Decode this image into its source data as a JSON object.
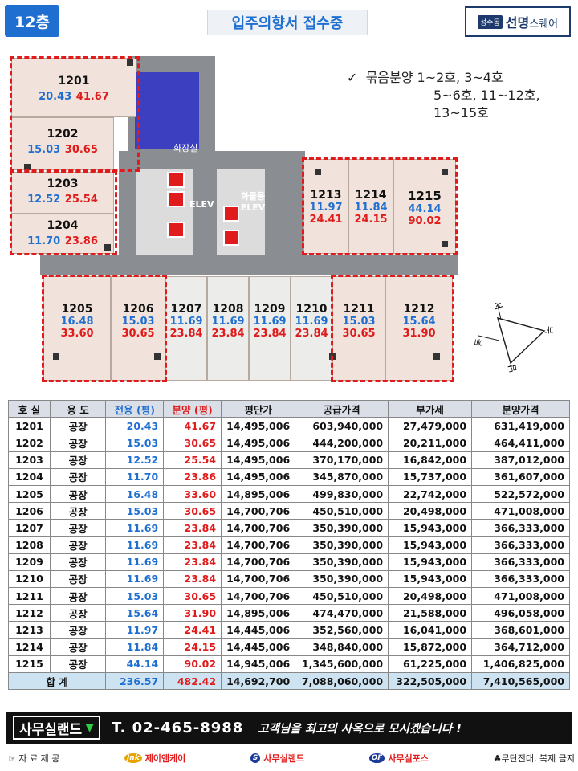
{
  "header": {
    "floor": "12층",
    "title": "입주의향서 접수중",
    "brand_badge": "성수동",
    "brand_name": "선명",
    "brand_suffix": "스퀘어"
  },
  "note": {
    "check": "✓",
    "line1": "묶음분양 1~2호, 3~4호",
    "line2": "5~6호, 11~12호,",
    "line3": "13~15호"
  },
  "floorplan": {
    "restroom_label": "화장실",
    "elev_label": "ELEV",
    "freight_elev_label": "화물용 ELEV",
    "units": [
      {
        "no": "1201",
        "exc": "20.43",
        "sale": "41.67"
      },
      {
        "no": "1202",
        "exc": "15.03",
        "sale": "30.65"
      },
      {
        "no": "1203",
        "exc": "12.52",
        "sale": "25.54"
      },
      {
        "no": "1204",
        "exc": "11.70",
        "sale": "23.86"
      },
      {
        "no": "1205",
        "exc": "16.48",
        "sale": "33.60"
      },
      {
        "no": "1206",
        "exc": "15.03",
        "sale": "30.65"
      },
      {
        "no": "1207",
        "exc": "11.69",
        "sale": "23.84"
      },
      {
        "no": "1208",
        "exc": "11.69",
        "sale": "23.84"
      },
      {
        "no": "1209",
        "exc": "11.69",
        "sale": "23.84"
      },
      {
        "no": "1210",
        "exc": "11.69",
        "sale": "23.84"
      },
      {
        "no": "1211",
        "exc": "15.03",
        "sale": "30.65"
      },
      {
        "no": "1212",
        "exc": "15.64",
        "sale": "31.90"
      },
      {
        "no": "1213",
        "exc": "11.97",
        "sale": "24.41"
      },
      {
        "no": "1214",
        "exc": "11.84",
        "sale": "24.15"
      },
      {
        "no": "1215",
        "exc": "44.14",
        "sale": "90.02"
      }
    ],
    "compass": {
      "n": "북",
      "s": "남",
      "e": "동",
      "w": "서"
    }
  },
  "table": {
    "headers": [
      "호 실",
      "용 도",
      "전용 (평)",
      "분양 (평)",
      "평단가",
      "공급가격",
      "부가세",
      "분양가격"
    ],
    "rows": [
      [
        "1201",
        "공장",
        "20.43",
        "41.67",
        "14,495,006",
        "603,940,000",
        "27,479,000",
        "631,419,000"
      ],
      [
        "1202",
        "공장",
        "15.03",
        "30.65",
        "14,495,006",
        "444,200,000",
        "20,211,000",
        "464,411,000"
      ],
      [
        "1203",
        "공장",
        "12.52",
        "25.54",
        "14,495,006",
        "370,170,000",
        "16,842,000",
        "387,012,000"
      ],
      [
        "1204",
        "공장",
        "11.70",
        "23.86",
        "14,495,006",
        "345,870,000",
        "15,737,000",
        "361,607,000"
      ],
      [
        "1205",
        "공장",
        "16.48",
        "33.60",
        "14,895,006",
        "499,830,000",
        "22,742,000",
        "522,572,000"
      ],
      [
        "1206",
        "공장",
        "15.03",
        "30.65",
        "14,700,706",
        "450,510,000",
        "20,498,000",
        "471,008,000"
      ],
      [
        "1207",
        "공장",
        "11.69",
        "23.84",
        "14,700,706",
        "350,390,000",
        "15,943,000",
        "366,333,000"
      ],
      [
        "1208",
        "공장",
        "11.69",
        "23.84",
        "14,700,706",
        "350,390,000",
        "15,943,000",
        "366,333,000"
      ],
      [
        "1209",
        "공장",
        "11.69",
        "23.84",
        "14,700,706",
        "350,390,000",
        "15,943,000",
        "366,333,000"
      ],
      [
        "1210",
        "공장",
        "11.69",
        "23.84",
        "14,700,706",
        "350,390,000",
        "15,943,000",
        "366,333,000"
      ],
      [
        "1211",
        "공장",
        "15.03",
        "30.65",
        "14,700,706",
        "450,510,000",
        "20,498,000",
        "471,008,000"
      ],
      [
        "1212",
        "공장",
        "15.64",
        "31.90",
        "14,895,006",
        "474,470,000",
        "21,588,000",
        "496,058,000"
      ],
      [
        "1213",
        "공장",
        "11.97",
        "24.41",
        "14,445,006",
        "352,560,000",
        "16,041,000",
        "368,601,000"
      ],
      [
        "1214",
        "공장",
        "11.84",
        "24.15",
        "14,445,006",
        "348,840,000",
        "15,872,000",
        "364,712,000"
      ],
      [
        "1215",
        "공장",
        "44.14",
        "90.02",
        "14,945,006",
        "1,345,600,000",
        "61,225,000",
        "1,406,825,000"
      ]
    ],
    "total": {
      "label": "합 계",
      "exc": "236.57",
      "sale": "482.42",
      "unit_price": "14,692,700",
      "supply": "7,088,060,000",
      "vat": "322,505,000",
      "price": "7,410,565,000"
    }
  },
  "footer": {
    "logo": "사무실랜드",
    "logo_mark": "▼",
    "phone": "T. 02-465-8988",
    "slogan": "고객님을 최고의 사옥으로 모시겠습니다 !",
    "source_label": "☞ 자 료 제 공",
    "provider1": "제이앤케이",
    "provider2": "사무실랜드",
    "provider3": "사무실포스",
    "copyright": "♣무단전대, 복제 금지"
  },
  "colors": {
    "accent_blue": "#1f6fd1",
    "accent_red": "#e01b1b",
    "total_row": "#cde3f2"
  }
}
